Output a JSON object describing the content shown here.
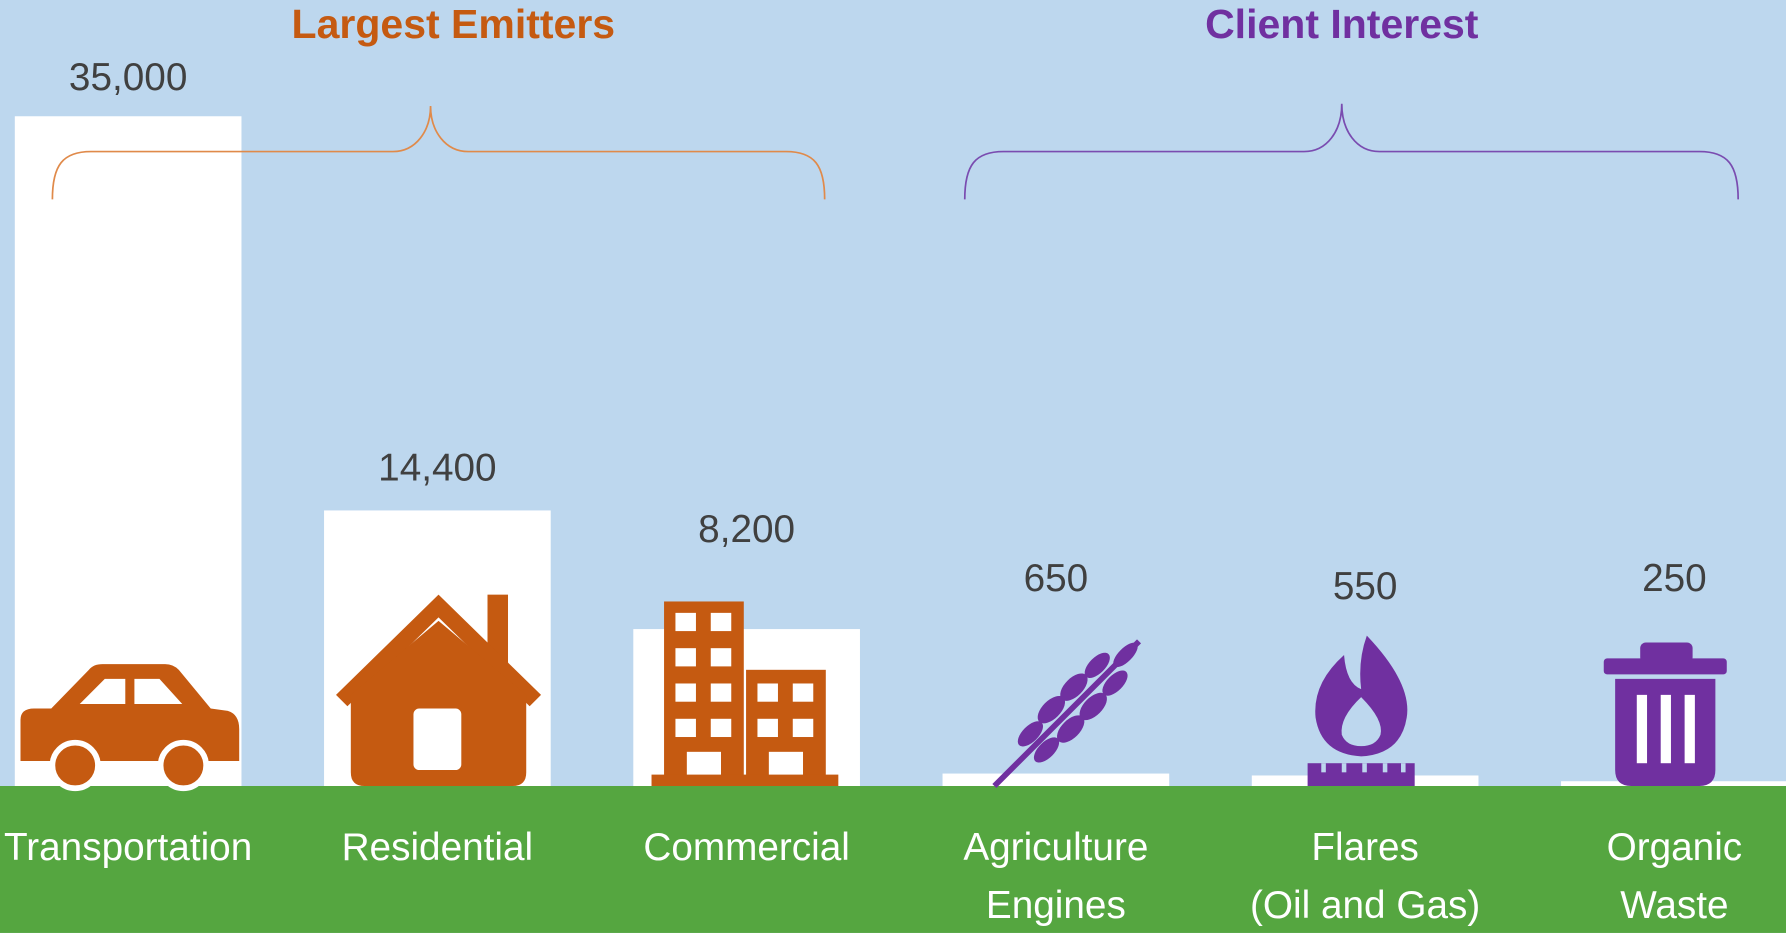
{
  "chart_data": {
    "type": "bar",
    "groups": [
      {
        "title": "Largest Emitters",
        "color": "#c55a11"
      },
      {
        "title": "Client Interest",
        "color": "#7030a0"
      }
    ],
    "categories": [
      [
        "Transportation"
      ],
      [
        "Residential"
      ],
      [
        "Commercial"
      ],
      [
        "Agriculture",
        "Engines"
      ],
      [
        "Flares",
        "(Oil and Gas)"
      ],
      [
        "Organic",
        "Waste"
      ]
    ],
    "values": [
      35000,
      14400,
      8200,
      650,
      550,
      250
    ],
    "value_labels": [
      "35,000",
      "14,400",
      "8,200",
      "650",
      "550",
      "250"
    ],
    "color": "#ffffff",
    "ylim": [
      0,
      35000
    ]
  }
}
